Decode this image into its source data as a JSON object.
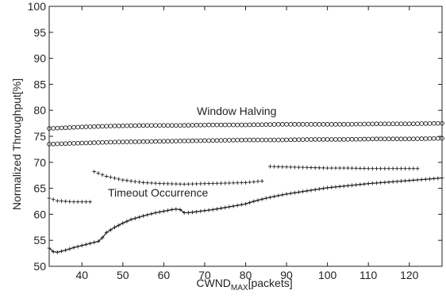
{
  "chart_data": {
    "type": "scatter",
    "xlabel": {
      "main": "CWND",
      "sub": "MAX",
      "suffix": "[packets]"
    },
    "ylabel": "Normalized Throughput[%]",
    "xlim": [
      32,
      128
    ],
    "ylim": [
      50,
      100
    ],
    "xticks": [
      40,
      50,
      60,
      70,
      80,
      90,
      100,
      110,
      120
    ],
    "yticks": [
      50,
      55,
      60,
      65,
      70,
      75,
      80,
      85,
      90,
      95,
      100
    ],
    "grid": false,
    "annotations": [
      "Window Halving",
      "Timeout Occurrence"
    ],
    "series": [
      {
        "marker": "circle",
        "x": [
          32,
          40,
          48,
          56,
          64,
          72,
          80,
          88,
          96,
          104,
          112,
          120,
          128
        ],
        "y": [
          76.5,
          76.8,
          77.0,
          77.1,
          77.1,
          77.2,
          77.2,
          77.3,
          77.3,
          77.3,
          77.4,
          77.4,
          77.5
        ]
      },
      {
        "marker": "circle",
        "x": [
          32,
          40,
          48,
          56,
          64,
          72,
          80,
          88,
          96,
          104,
          112,
          120,
          128
        ],
        "y": [
          73.5,
          73.7,
          73.9,
          74.0,
          74.1,
          74.2,
          74.3,
          74.3,
          74.4,
          74.4,
          74.5,
          74.5,
          74.6
        ]
      },
      {
        "marker": "plus",
        "x": [
          32,
          34,
          36,
          38,
          40,
          42
        ],
        "y": [
          63.1,
          62.6,
          62.5,
          62.4,
          62.4,
          62.4
        ]
      },
      {
        "marker": "plus",
        "x": [
          43,
          46,
          50,
          55,
          60,
          65,
          70,
          75,
          80,
          84
        ],
        "y": [
          68.2,
          67.3,
          66.6,
          66.1,
          65.9,
          65.8,
          65.9,
          66.0,
          66.1,
          66.4
        ]
      },
      {
        "marker": "plus",
        "x": [
          86,
          90,
          95,
          100,
          105,
          110,
          115,
          120,
          122
        ],
        "y": [
          69.2,
          69.1,
          69.0,
          68.9,
          68.9,
          68.8,
          68.8,
          68.8,
          68.8
        ]
      },
      {
        "marker": "plus",
        "line": true,
        "x": [
          32,
          33,
          34,
          36,
          38,
          40,
          42,
          44,
          45,
          46,
          48,
          50,
          52,
          55,
          58,
          60,
          62,
          63,
          64,
          65,
          66,
          68,
          70,
          72,
          75,
          78,
          80,
          82,
          85,
          88,
          90,
          95,
          100,
          105,
          110,
          115,
          120,
          125,
          128
        ],
        "y": [
          53.5,
          52.8,
          52.7,
          53.1,
          53.6,
          54.0,
          54.4,
          54.8,
          55.5,
          56.5,
          57.5,
          58.3,
          59.0,
          59.7,
          60.3,
          60.6,
          60.9,
          61.0,
          60.9,
          60.3,
          60.3,
          60.5,
          60.7,
          60.9,
          61.3,
          61.7,
          62.0,
          62.5,
          63.1,
          63.6,
          63.9,
          64.5,
          65.1,
          65.5,
          65.9,
          66.2,
          66.5,
          66.8,
          67.0
        ]
      }
    ]
  }
}
